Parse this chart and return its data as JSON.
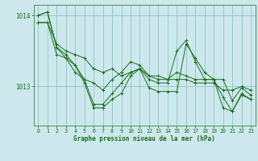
{
  "title": "Graphe pression niveau de la mer (hPa)",
  "bg_color": "#cde8ed",
  "plot_bg_color": "#cde8ed",
  "line_color": "#1a6e1a",
  "grid_color": "#7fbfbf",
  "tick_color": "#1a6e1a",
  "xlim": [
    -0.5,
    23.5
  ],
  "ylim": [
    1012.45,
    1014.15
  ],
  "yticks": [
    1013,
    1014
  ],
  "xticks": [
    0,
    1,
    2,
    3,
    4,
    5,
    6,
    7,
    8,
    9,
    10,
    11,
    12,
    13,
    14,
    15,
    16,
    17,
    18,
    19,
    20,
    21,
    22,
    23
  ],
  "series": [
    [
      1013.9,
      1013.9,
      1013.6,
      1013.5,
      1013.45,
      1013.4,
      1013.25,
      1013.2,
      1013.25,
      1013.15,
      1013.2,
      1013.25,
      1013.15,
      1013.15,
      1013.1,
      1013.1,
      1013.1,
      1013.05,
      1013.05,
      1013.05,
      1012.95,
      1012.95,
      1013.0,
      1012.95
    ],
    [
      1013.9,
      1013.9,
      1013.45,
      1013.4,
      1013.3,
      1013.1,
      1012.75,
      1012.75,
      1012.9,
      1013.05,
      1013.2,
      1013.25,
      1013.1,
      1013.05,
      1013.05,
      1013.5,
      1013.65,
      1013.35,
      1013.1,
      1013.1,
      1013.1,
      1012.8,
      1012.98,
      1012.88
    ],
    [
      1014.0,
      1014.05,
      1013.55,
      1013.45,
      1013.3,
      1013.05,
      1012.7,
      1012.7,
      1012.82,
      1012.9,
      1013.15,
      1013.25,
      1012.98,
      1012.93,
      1012.93,
      1012.93,
      1013.6,
      1013.4,
      1013.2,
      1013.1,
      1012.7,
      1012.65,
      1012.88,
      1012.82
    ],
    [
      1014.0,
      1014.05,
      1013.55,
      1013.4,
      1013.2,
      1013.1,
      1013.05,
      1012.95,
      1013.1,
      1013.2,
      1013.35,
      1013.3,
      1013.15,
      1013.1,
      1013.1,
      1013.2,
      1013.15,
      1013.1,
      1013.1,
      1013.1,
      1012.85,
      1012.65,
      1012.9,
      1012.82
    ]
  ]
}
